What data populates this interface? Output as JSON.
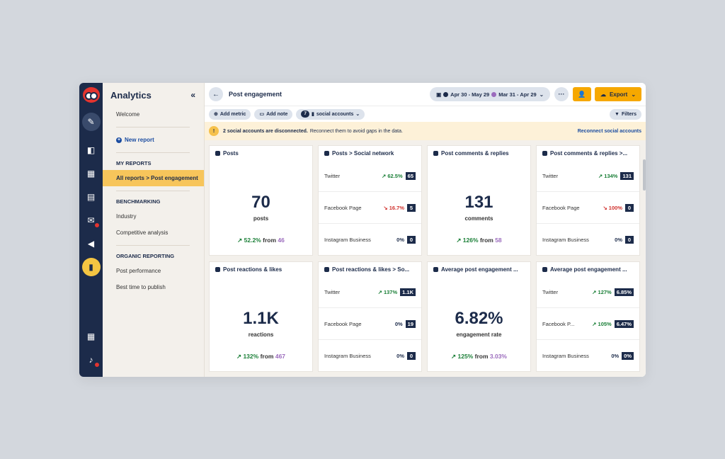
{
  "sidebar": {
    "title": "Analytics",
    "collapse_icon": "«",
    "welcome": "Welcome",
    "new_report": "New report",
    "my_reports_head": "MY REPORTS",
    "active_item": "All reports > Post engagement",
    "benchmarking_head": "BENCHMARKING",
    "industry": "Industry",
    "competitive": "Competitive analysis",
    "organic_head": "ORGANIC REPORTING",
    "post_performance": "Post performance",
    "best_time": "Best time to publish"
  },
  "header": {
    "title": "Post engagement",
    "date_current": "Apr 30 - May 29",
    "date_compare": "Mar 31 - Apr 29",
    "export_label": "Export",
    "more_label": "···"
  },
  "toolbar": {
    "add_metric": "Add metric",
    "add_note": "Add note",
    "accounts_count": "7",
    "accounts_label": "social accounts",
    "filters": "Filters"
  },
  "banner": {
    "bold": "2 social accounts are disconnected.",
    "text": "Reconnect them to avoid gaps in the data.",
    "link": "Reconnect social accounts"
  },
  "colors": {
    "navy": "#1c2b4a",
    "accent": "#f6a800",
    "positive": "#1a7f37",
    "negative": "#d0312d",
    "compare_purple": "#9b6bbd"
  },
  "cards": {
    "posts": {
      "title": "Posts",
      "value": "70",
      "unit": "posts",
      "delta": "↗ 52.2%",
      "from": "from",
      "prev": "46"
    },
    "posts_sn": {
      "title": "Posts > Social network",
      "rows": [
        {
          "name": "Twitter",
          "pct": "↗ 62.5%",
          "value": "65"
        },
        {
          "name": "Facebook Page",
          "pct": "↘ 16.7%",
          "value": "5"
        },
        {
          "name": "Instagram Business",
          "pct": "0%",
          "value": "0"
        }
      ]
    },
    "comments": {
      "title": "Post comments & replies",
      "value": "131",
      "unit": "comments",
      "delta": "↗ 126%",
      "from": "from",
      "prev": "58"
    },
    "comments_sn": {
      "title": "Post comments & replies >...",
      "rows": [
        {
          "name": "Twitter",
          "pct": "↗ 134%",
          "value": "131"
        },
        {
          "name": "Facebook Page",
          "pct": "↘ 100%",
          "value": "0"
        },
        {
          "name": "Instagram Business",
          "pct": "0%",
          "value": "0"
        }
      ]
    },
    "reactions": {
      "title": "Post reactions & likes",
      "value": "1.1K",
      "unit": "reactions",
      "delta": "↗ 132%",
      "from": "from",
      "prev": "467"
    },
    "reactions_sn": {
      "title": "Post reactions & likes > So...",
      "rows": [
        {
          "name": "Twitter",
          "pct": "↗ 137%",
          "value": "1.1K"
        },
        {
          "name": "Facebook Page",
          "pct": "0%",
          "value": "19"
        },
        {
          "name": "Instagram Business",
          "pct": "0%",
          "value": "0"
        }
      ]
    },
    "engagement": {
      "title": "Average post engagement ...",
      "value": "6.82%",
      "unit": "engagement rate",
      "delta": "↗ 125%",
      "from": "from",
      "prev": "3.03%"
    },
    "engagement_sn": {
      "title": "Average post engagement ...",
      "rows": [
        {
          "name": "Twitter",
          "pct": "↗ 127%",
          "value": "6.85%"
        },
        {
          "name": "Facebook P...",
          "pct": "↗ 105%",
          "value": "6.47%"
        },
        {
          "name": "Instagram Business",
          "pct": "0%",
          "value": "0%"
        }
      ]
    }
  }
}
